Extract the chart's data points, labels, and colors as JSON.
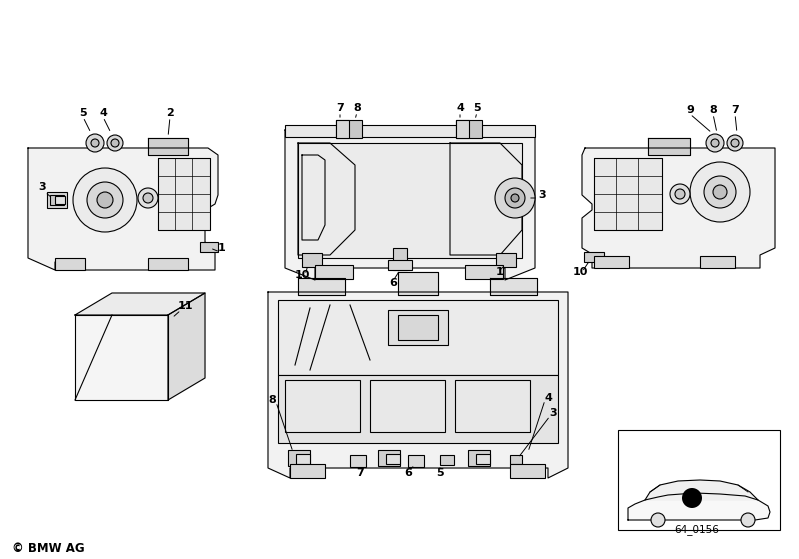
{
  "bg_color": "#ffffff",
  "line_color": "#000000",
  "bmw_text": "© BMW AG",
  "code_text": "64_0156"
}
